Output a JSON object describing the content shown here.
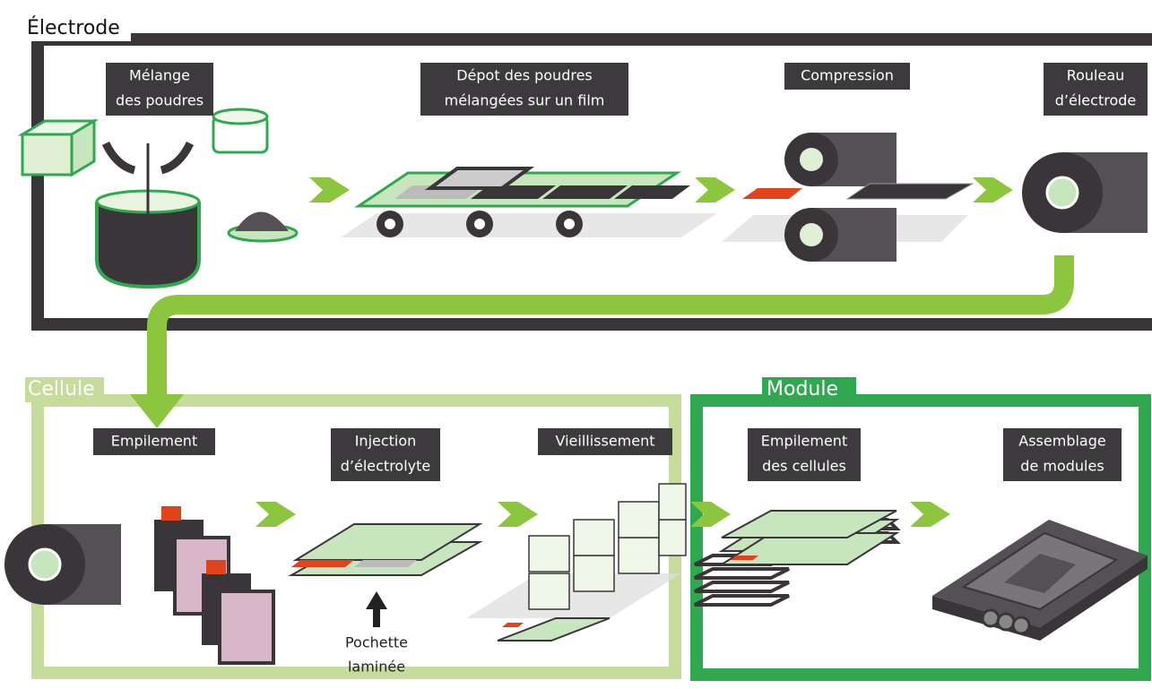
{
  "sections": [
    {
      "title": "Électrode",
      "steps": [
        {
          "label": [
            "Mélange",
            "des poudres"
          ]
        },
        {
          "label": [
            "Dépot des poudres",
            "mélangées sur un film"
          ]
        },
        {
          "label": [
            "Compression"
          ]
        },
        {
          "label": [
            "Rouleau",
            "d’électrode"
          ]
        }
      ]
    },
    {
      "title": "Cellule",
      "steps": [
        {
          "label": [
            "Empilement"
          ]
        },
        {
          "label": [
            "Injection",
            "d’électrolyte"
          ],
          "annotation": [
            "Pochette",
            "laminée"
          ]
        },
        {
          "label": [
            "Vieillissement"
          ]
        }
      ]
    },
    {
      "title": "Module",
      "steps": [
        {
          "label": [
            "Empilement",
            "des cellules"
          ]
        },
        {
          "label": [
            "Assemblage",
            "de modules"
          ]
        }
      ]
    }
  ]
}
